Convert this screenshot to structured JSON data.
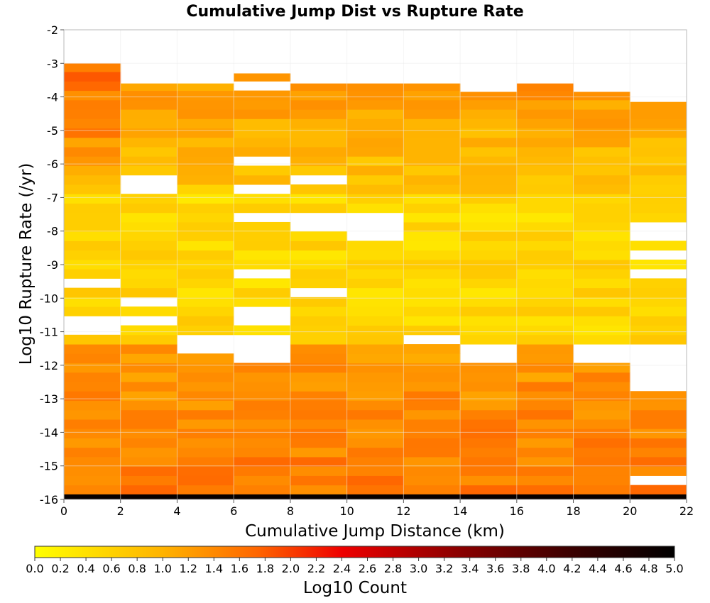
{
  "chart_data": {
    "type": "heatmap",
    "title": "Cumulative Jump Dist vs Rupture Rate",
    "xlabel": "Cumulative Jump Distance (km)",
    "ylabel": "Log10 Rupture Rate (/yr)",
    "xlim": [
      0,
      22
    ],
    "ylim": [
      -16,
      -2
    ],
    "x_bin_width": 2,
    "y_bin_height": 0.28,
    "xticks": [
      "0",
      "2",
      "4",
      "6",
      "8",
      "10",
      "12",
      "14",
      "16",
      "18",
      "20",
      "22"
    ],
    "yticks": [
      "-2",
      "-3",
      "-4",
      "-5",
      "-6",
      "-7",
      "-8",
      "-9",
      "-10",
      "-11",
      "-12",
      "-13",
      "-14",
      "-15",
      "-16"
    ],
    "x_bins": [
      {
        "x0": 0,
        "x1": 2,
        "top": -3.0
      },
      {
        "x0": 2,
        "x1": 4,
        "top": -3.6
      },
      {
        "x0": 4,
        "x1": 6,
        "top": -3.6
      },
      {
        "x0": 6,
        "x1": 8,
        "top": -3.3
      },
      {
        "x0": 8,
        "x1": 10,
        "top": -3.6
      },
      {
        "x0": 10,
        "x1": 12,
        "top": -3.6
      },
      {
        "x0": 12,
        "x1": 14,
        "top": -3.6
      },
      {
        "x0": 14,
        "x1": 16,
        "top": -3.85
      },
      {
        "x0": 16,
        "x1": 18,
        "top": -3.6
      },
      {
        "x0": 18,
        "x1": 20,
        "top": -3.85
      },
      {
        "x0": 20,
        "x1": 22,
        "top": -4.15
      }
    ],
    "empty_cells": [
      {
        "x0": 2,
        "x1": 4,
        "y0": -7.0,
        "y1": -6.45
      },
      {
        "x0": 4,
        "x1": 6,
        "y0": -6.45,
        "y1": -6.2
      },
      {
        "x0": 6,
        "x1": 8,
        "y0": -6.1,
        "y1": -5.85
      },
      {
        "x0": 6,
        "x1": 8,
        "y0": -3.9,
        "y1": -3.6
      },
      {
        "x0": 6,
        "x1": 8,
        "y0": -7.0,
        "y1": -6.7
      },
      {
        "x0": 8,
        "x1": 10,
        "y0": -6.7,
        "y1": -6.45
      },
      {
        "x0": 6,
        "x1": 8,
        "y0": -7.85,
        "y1": -7.55
      },
      {
        "x0": 8,
        "x1": 10,
        "y0": -8.1,
        "y1": -7.55
      },
      {
        "x0": 10,
        "x1": 12,
        "y0": -8.35,
        "y1": -7.55
      },
      {
        "x0": 6,
        "x1": 8,
        "y0": -9.35,
        "y1": -9.1
      },
      {
        "x0": 0,
        "x1": 2,
        "y0": -9.6,
        "y1": -9.35
      },
      {
        "x0": 8,
        "x1": 10,
        "y0": -9.9,
        "y1": -9.6
      },
      {
        "x0": 2,
        "x1": 4,
        "y0": -10.15,
        "y1": -9.9
      },
      {
        "x0": 6,
        "x1": 8,
        "y0": -10.95,
        "y1": -10.15
      },
      {
        "x0": 2,
        "x1": 4,
        "y0": -10.95,
        "y1": -10.4
      },
      {
        "x0": 4,
        "x1": 6,
        "y0": -10.65,
        "y1": -10.4
      },
      {
        "x0": 0,
        "x1": 2,
        "y0": -11.2,
        "y1": -10.65
      },
      {
        "x0": 10,
        "x1": 12,
        "y0": -10.65,
        "y1": -10.4
      },
      {
        "x0": 4,
        "x1": 6,
        "y0": -11.75,
        "y1": -11.2
      },
      {
        "x0": 6,
        "x1": 8,
        "y0": -11.85,
        "y1": -11.05
      },
      {
        "x0": 12,
        "x1": 14,
        "y0": -11.45,
        "y1": -11.2
      },
      {
        "x0": 14,
        "x1": 16,
        "y0": -11.85,
        "y1": -11.3
      },
      {
        "x0": 18,
        "x1": 20,
        "y0": -11.85,
        "y1": -11.3
      },
      {
        "x0": 20,
        "x1": 22,
        "y0": -12.7,
        "y1": -11.3
      },
      {
        "x0": 20,
        "x1": 22,
        "y0": -6.45,
        "y1": -6.2
      },
      {
        "x0": 20,
        "x1": 22,
        "y0": -8.35,
        "y1": -7.85
      },
      {
        "x0": 20,
        "x1": 22,
        "y0": -8.8,
        "y1": -8.55
      },
      {
        "x0": 20,
        "x1": 22,
        "y0": -9.35,
        "y1": -9.1
      },
      {
        "x0": 20,
        "x1": 22,
        "y0": -10.65,
        "y1": -10.4
      },
      {
        "x0": 20,
        "x1": 22,
        "y0": -10.95,
        "y1": -10.7
      },
      {
        "x0": 20,
        "x1": 22,
        "y0": -15.6,
        "y1": -15.3
      }
    ],
    "bottom_row": {
      "y0": -16.0,
      "y1": -15.85,
      "value": 4.9
    },
    "colorbar": {
      "label": "Log10 Count",
      "min": 0.0,
      "max": 5.0,
      "ticks": [
        "0.0",
        "0.2",
        "0.4",
        "0.6",
        "0.8",
        "1.0",
        "1.2",
        "1.4",
        "1.6",
        "1.8",
        "2.0",
        "2.2",
        "2.4",
        "2.6",
        "2.8",
        "3.0",
        "3.2",
        "3.4",
        "3.6",
        "3.8",
        "4.0",
        "4.2",
        "4.4",
        "4.6",
        "4.8",
        "5.0"
      ],
      "stops": [
        {
          "value": 0.0,
          "color": "#ffff00"
        },
        {
          "value": 1.0,
          "color": "#ffb300"
        },
        {
          "value": 1.75,
          "color": "#ff6400"
        },
        {
          "value": 2.4,
          "color": "#ee0000"
        },
        {
          "value": 3.3,
          "color": "#8c0000"
        },
        {
          "value": 4.2,
          "color": "#3a0000"
        },
        {
          "value": 5.0,
          "color": "#000000"
        }
      ]
    },
    "grid": true
  }
}
